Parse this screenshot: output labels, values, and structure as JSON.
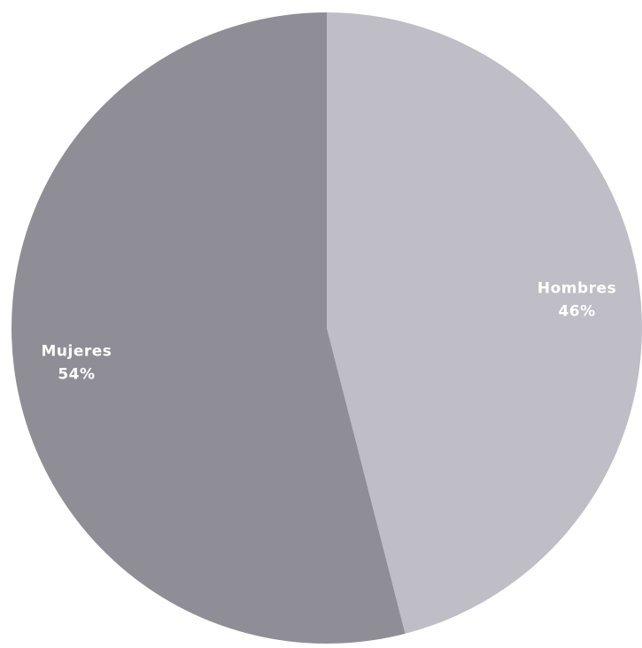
{
  "chart_data": {
    "type": "pie",
    "categories": [
      "Hombres",
      "Mujeres"
    ],
    "values": [
      46,
      54
    ],
    "value_labels": [
      "46%",
      "54%"
    ],
    "colors": [
      "#bfbdc6",
      "#8f8e96"
    ],
    "start_angle_deg": 0,
    "direction": "clockwise",
    "legend": false
  }
}
